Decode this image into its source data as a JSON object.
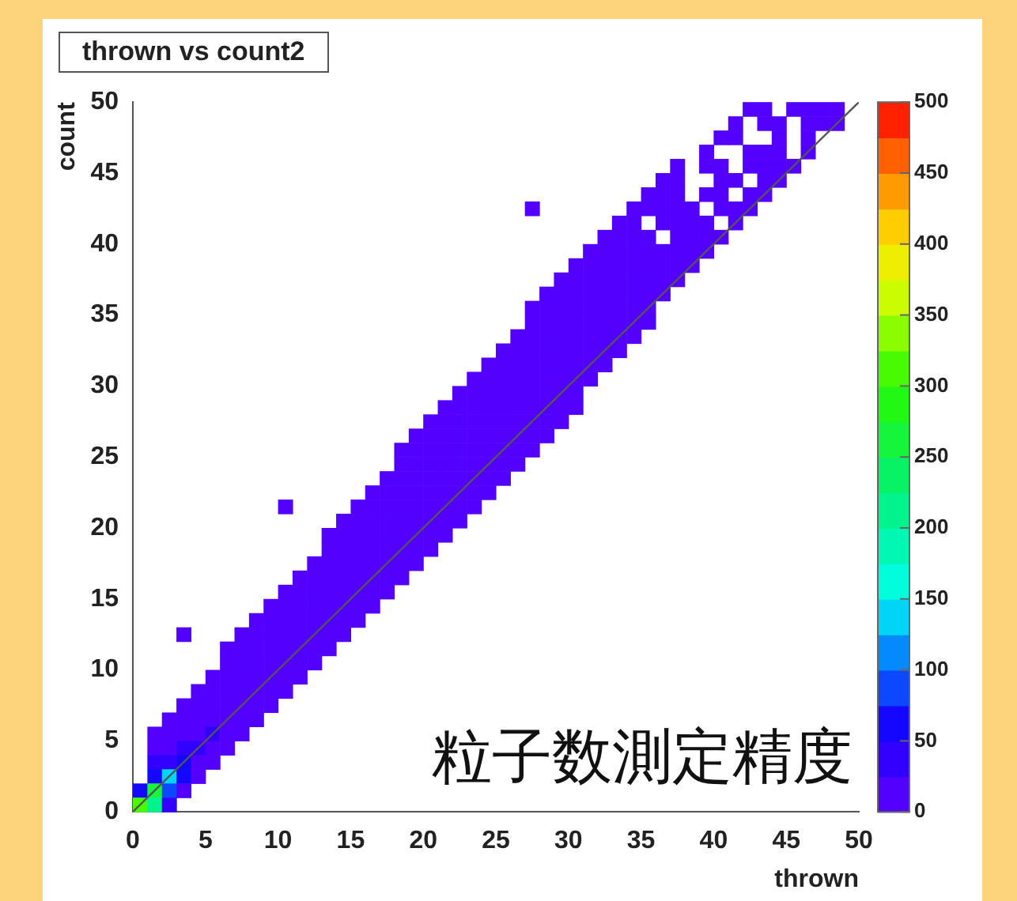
{
  "chart_data": {
    "type": "heatmap",
    "title": "thrown vs count2",
    "xlabel": "thrown",
    "ylabel": "count",
    "annotations": [
      "粒子数測定精度"
    ],
    "xlim": [
      0,
      50
    ],
    "ylim": [
      0,
      50
    ],
    "xticks": [
      0,
      5,
      10,
      15,
      20,
      25,
      30,
      35,
      40,
      45,
      50
    ],
    "yticks": [
      0,
      5,
      10,
      15,
      20,
      25,
      30,
      35,
      40,
      45,
      50
    ],
    "clim": [
      0,
      500
    ],
    "cticks": [
      0,
      50,
      100,
      150,
      200,
      250,
      300,
      350,
      400,
      450,
      500
    ],
    "series": [
      {
        "type": "line",
        "x": [
          0,
          50
        ],
        "values": [
          0,
          50
        ],
        "color": "#555555"
      }
    ],
    "cells": [
      [
        null,
        null,
        null,
        null,
        null,
        null,
        null,
        null,
        null,
        null,
        null,
        null,
        null,
        null,
        null,
        null,
        null,
        null,
        null,
        null,
        null,
        null,
        null,
        null,
        null,
        null,
        null,
        null,
        null,
        null,
        null,
        null,
        null,
        null,
        null,
        null,
        null,
        null,
        null,
        null,
        null,
        null,
        10,
        10,
        null,
        10,
        10,
        10,
        10,
        null
      ],
      [
        null,
        null,
        null,
        null,
        null,
        null,
        null,
        null,
        null,
        null,
        null,
        null,
        null,
        null,
        null,
        null,
        null,
        null,
        null,
        null,
        null,
        null,
        null,
        null,
        null,
        null,
        null,
        null,
        null,
        null,
        null,
        null,
        null,
        null,
        null,
        null,
        null,
        null,
        null,
        null,
        null,
        10,
        null,
        10,
        10,
        null,
        10,
        10,
        10,
        null
      ],
      [
        null,
        null,
        null,
        null,
        null,
        null,
        null,
        null,
        null,
        null,
        null,
        null,
        null,
        null,
        null,
        null,
        null,
        null,
        null,
        null,
        null,
        null,
        null,
        null,
        null,
        null,
        null,
        null,
        null,
        null,
        null,
        null,
        null,
        null,
        null,
        null,
        null,
        null,
        null,
        null,
        10,
        10,
        null,
        null,
        10,
        null,
        10,
        null,
        null,
        null
      ],
      [
        null,
        null,
        null,
        null,
        null,
        null,
        null,
        null,
        null,
        null,
        null,
        null,
        null,
        null,
        null,
        null,
        null,
        null,
        null,
        null,
        null,
        null,
        null,
        null,
        null,
        null,
        null,
        null,
        null,
        null,
        null,
        null,
        null,
        null,
        null,
        null,
        null,
        null,
        null,
        10,
        null,
        null,
        10,
        10,
        10,
        null,
        10,
        null,
        null,
        null
      ],
      [
        null,
        null,
        null,
        null,
        null,
        null,
        null,
        null,
        null,
        null,
        null,
        null,
        null,
        null,
        null,
        null,
        null,
        null,
        null,
        null,
        null,
        null,
        null,
        null,
        null,
        null,
        null,
        null,
        null,
        null,
        null,
        null,
        null,
        null,
        null,
        null,
        null,
        10,
        null,
        10,
        10,
        null,
        10,
        10,
        10,
        10,
        null,
        null,
        null,
        null
      ],
      [
        null,
        null,
        null,
        null,
        null,
        null,
        null,
        null,
        null,
        null,
        null,
        null,
        null,
        null,
        null,
        null,
        null,
        null,
        null,
        null,
        null,
        null,
        null,
        null,
        null,
        null,
        null,
        null,
        null,
        null,
        null,
        null,
        null,
        null,
        null,
        null,
        10,
        10,
        null,
        null,
        10,
        10,
        null,
        10,
        10,
        null,
        null,
        null,
        null,
        null
      ],
      [
        null,
        null,
        null,
        null,
        null,
        null,
        null,
        null,
        null,
        null,
        null,
        null,
        null,
        null,
        null,
        null,
        null,
        null,
        null,
        null,
        null,
        null,
        null,
        null,
        null,
        null,
        null,
        null,
        null,
        null,
        null,
        null,
        null,
        null,
        null,
        10,
        10,
        10,
        null,
        10,
        10,
        null,
        10,
        10,
        null,
        null,
        null,
        null,
        null,
        null
      ],
      [
        null,
        null,
        null,
        null,
        null,
        null,
        null,
        null,
        null,
        null,
        null,
        null,
        null,
        null,
        null,
        null,
        null,
        null,
        null,
        null,
        null,
        null,
        null,
        null,
        null,
        null,
        null,
        10,
        null,
        null,
        null,
        null,
        null,
        null,
        10,
        10,
        10,
        10,
        10,
        null,
        10,
        10,
        10,
        null,
        null,
        null,
        null,
        null,
        null,
        null
      ],
      [
        null,
        null,
        null,
        null,
        null,
        null,
        null,
        null,
        null,
        null,
        null,
        null,
        null,
        null,
        null,
        null,
        null,
        null,
        null,
        null,
        null,
        null,
        null,
        null,
        null,
        null,
        null,
        null,
        null,
        null,
        null,
        null,
        null,
        10,
        10,
        null,
        10,
        10,
        10,
        10,
        null,
        10,
        null,
        null,
        null,
        null,
        null,
        null,
        null,
        null
      ],
      [
        null,
        null,
        null,
        null,
        null,
        null,
        null,
        null,
        null,
        null,
        null,
        null,
        null,
        null,
        null,
        null,
        null,
        null,
        null,
        null,
        null,
        null,
        null,
        null,
        null,
        null,
        null,
        null,
        null,
        null,
        null,
        null,
        10,
        10,
        10,
        10,
        null,
        10,
        10,
        10,
        10,
        null,
        null,
        null,
        null,
        null,
        null,
        null,
        null,
        null
      ],
      [
        null,
        null,
        null,
        null,
        null,
        null,
        null,
        null,
        null,
        null,
        null,
        null,
        null,
        null,
        null,
        null,
        null,
        null,
        null,
        null,
        null,
        null,
        null,
        null,
        null,
        null,
        null,
        null,
        null,
        null,
        null,
        10,
        10,
        10,
        10,
        10,
        10,
        10,
        10,
        10,
        null,
        null,
        null,
        null,
        null,
        null,
        null,
        null,
        null,
        null
      ],
      [
        null,
        null,
        null,
        null,
        null,
        null,
        null,
        null,
        null,
        null,
        null,
        null,
        null,
        null,
        null,
        null,
        null,
        null,
        null,
        null,
        null,
        null,
        null,
        null,
        null,
        null,
        null,
        null,
        null,
        null,
        10,
        10,
        10,
        10,
        10,
        10,
        10,
        10,
        10,
        null,
        null,
        null,
        null,
        null,
        null,
        null,
        null,
        null,
        null,
        null
      ],
      [
        null,
        null,
        null,
        null,
        null,
        null,
        null,
        null,
        null,
        null,
        null,
        null,
        null,
        null,
        null,
        null,
        null,
        null,
        null,
        null,
        null,
        null,
        null,
        null,
        null,
        null,
        null,
        null,
        null,
        10,
        10,
        10,
        10,
        10,
        10,
        10,
        10,
        10,
        null,
        null,
        null,
        null,
        null,
        null,
        null,
        null,
        null,
        null,
        null,
        null
      ],
      [
        null,
        null,
        null,
        null,
        null,
        null,
        null,
        null,
        null,
        null,
        null,
        null,
        null,
        null,
        null,
        null,
        null,
        null,
        null,
        null,
        null,
        null,
        null,
        null,
        null,
        null,
        null,
        null,
        10,
        10,
        10,
        10,
        10,
        10,
        10,
        10,
        10,
        null,
        null,
        null,
        null,
        null,
        null,
        null,
        null,
        null,
        null,
        null,
        null,
        null
      ],
      [
        null,
        null,
        null,
        null,
        null,
        null,
        null,
        null,
        null,
        null,
        null,
        null,
        null,
        null,
        null,
        null,
        null,
        null,
        null,
        null,
        null,
        null,
        null,
        null,
        null,
        null,
        null,
        10,
        10,
        10,
        10,
        10,
        10,
        10,
        10,
        10,
        null,
        null,
        null,
        null,
        null,
        null,
        null,
        null,
        null,
        null,
        null,
        null,
        null,
        null
      ],
      [
        null,
        null,
        null,
        null,
        null,
        null,
        null,
        null,
        null,
        null,
        null,
        null,
        null,
        null,
        null,
        null,
        null,
        null,
        null,
        null,
        null,
        null,
        null,
        null,
        null,
        null,
        null,
        10,
        10,
        10,
        10,
        10,
        10,
        10,
        10,
        10,
        null,
        null,
        null,
        null,
        null,
        null,
        null,
        null,
        null,
        null,
        null,
        null,
        null,
        null
      ],
      [
        null,
        null,
        null,
        null,
        null,
        null,
        null,
        null,
        null,
        null,
        null,
        null,
        null,
        null,
        null,
        null,
        null,
        null,
        null,
        null,
        null,
        null,
        null,
        null,
        null,
        null,
        10,
        10,
        10,
        10,
        10,
        10,
        10,
        10,
        10,
        null,
        null,
        null,
        null,
        null,
        null,
        null,
        null,
        null,
        null,
        null,
        null,
        null,
        null,
        null
      ],
      [
        null,
        null,
        null,
        null,
        null,
        null,
        null,
        null,
        null,
        null,
        null,
        null,
        null,
        null,
        null,
        null,
        null,
        null,
        null,
        null,
        null,
        null,
        null,
        null,
        null,
        10,
        10,
        10,
        10,
        10,
        10,
        10,
        10,
        10,
        null,
        null,
        null,
        null,
        null,
        null,
        null,
        null,
        null,
        null,
        null,
        null,
        null,
        null,
        null,
        null
      ],
      [
        null,
        null,
        null,
        null,
        null,
        null,
        null,
        null,
        null,
        null,
        null,
        null,
        null,
        null,
        null,
        null,
        null,
        null,
        null,
        null,
        null,
        null,
        null,
        null,
        10,
        10,
        10,
        10,
        10,
        10,
        10,
        10,
        10,
        null,
        null,
        null,
        null,
        null,
        null,
        null,
        null,
        null,
        null,
        null,
        null,
        null,
        null,
        null,
        null,
        null
      ],
      [
        null,
        null,
        null,
        null,
        null,
        null,
        null,
        null,
        null,
        null,
        null,
        null,
        null,
        null,
        null,
        null,
        null,
        null,
        null,
        null,
        null,
        null,
        null,
        10,
        10,
        10,
        10,
        10,
        10,
        10,
        10,
        10,
        null,
        null,
        null,
        null,
        null,
        null,
        null,
        null,
        null,
        null,
        null,
        null,
        null,
        null,
        null,
        null,
        null,
        null
      ],
      [
        null,
        null,
        null,
        null,
        null,
        null,
        null,
        null,
        null,
        null,
        null,
        null,
        null,
        null,
        null,
        null,
        null,
        null,
        null,
        null,
        null,
        null,
        10,
        10,
        10,
        10,
        10,
        10,
        10,
        10,
        10,
        null,
        null,
        null,
        null,
        null,
        null,
        null,
        null,
        null,
        null,
        null,
        null,
        null,
        null,
        null,
        null,
        null,
        null,
        null
      ],
      [
        null,
        null,
        null,
        null,
        null,
        null,
        null,
        null,
        null,
        null,
        null,
        null,
        null,
        null,
        null,
        null,
        null,
        null,
        null,
        null,
        null,
        10,
        10,
        10,
        10,
        10,
        10,
        10,
        10,
        10,
        10,
        null,
        null,
        null,
        null,
        null,
        null,
        null,
        null,
        null,
        null,
        null,
        null,
        null,
        null,
        null,
        null,
        null,
        null,
        null
      ],
      [
        null,
        null,
        null,
        null,
        null,
        null,
        null,
        null,
        null,
        null,
        null,
        null,
        null,
        null,
        null,
        null,
        null,
        null,
        null,
        null,
        10,
        10,
        10,
        10,
        10,
        10,
        10,
        10,
        10,
        10,
        null,
        null,
        null,
        null,
        null,
        null,
        null,
        null,
        null,
        null,
        null,
        null,
        null,
        null,
        null,
        null,
        null,
        null,
        null,
        null
      ],
      [
        null,
        null,
        null,
        null,
        null,
        null,
        null,
        null,
        null,
        null,
        null,
        null,
        null,
        null,
        null,
        null,
        null,
        null,
        null,
        10,
        10,
        10,
        10,
        10,
        10,
        10,
        10,
        10,
        10,
        null,
        null,
        null,
        null,
        null,
        null,
        null,
        null,
        null,
        null,
        null,
        null,
        null,
        null,
        null,
        null,
        null,
        null,
        null,
        null,
        null
      ],
      [
        null,
        null,
        null,
        null,
        null,
        null,
        null,
        null,
        null,
        null,
        null,
        null,
        null,
        null,
        null,
        null,
        null,
        null,
        10,
        10,
        10,
        10,
        10,
        10,
        10,
        10,
        10,
        10,
        null,
        null,
        null,
        null,
        null,
        null,
        null,
        null,
        null,
        null,
        null,
        null,
        null,
        null,
        null,
        null,
        null,
        null,
        null,
        null,
        null,
        null
      ],
      [
        null,
        null,
        null,
        null,
        null,
        null,
        null,
        null,
        null,
        null,
        null,
        null,
        null,
        null,
        null,
        null,
        null,
        null,
        10,
        10,
        10,
        10,
        10,
        10,
        10,
        10,
        10,
        null,
        null,
        null,
        null,
        null,
        null,
        null,
        null,
        null,
        null,
        null,
        null,
        null,
        null,
        null,
        null,
        null,
        null,
        null,
        null,
        null,
        null,
        null
      ],
      [
        null,
        null,
        null,
        null,
        null,
        null,
        null,
        null,
        null,
        null,
        null,
        null,
        null,
        null,
        null,
        null,
        null,
        10,
        10,
        10,
        10,
        10,
        10,
        10,
        10,
        10,
        null,
        null,
        null,
        null,
        null,
        null,
        null,
        null,
        null,
        null,
        null,
        null,
        null,
        null,
        null,
        null,
        null,
        null,
        null,
        null,
        null,
        null,
        null,
        null
      ],
      [
        null,
        null,
        null,
        null,
        null,
        null,
        null,
        null,
        null,
        null,
        null,
        null,
        null,
        null,
        null,
        null,
        10,
        10,
        10,
        10,
        10,
        10,
        10,
        10,
        10,
        null,
        null,
        null,
        null,
        null,
        null,
        null,
        null,
        null,
        null,
        null,
        null,
        null,
        null,
        null,
        null,
        null,
        null,
        null,
        null,
        null,
        null,
        null,
        null,
        null
      ],
      [
        null,
        null,
        null,
        null,
        null,
        null,
        null,
        null,
        null,
        null,
        10,
        null,
        null,
        null,
        null,
        10,
        10,
        10,
        10,
        10,
        10,
        10,
        10,
        10,
        null,
        null,
        null,
        null,
        null,
        null,
        null,
        null,
        null,
        null,
        null,
        null,
        null,
        null,
        null,
        null,
        null,
        null,
        null,
        null,
        null,
        null,
        null,
        null,
        null,
        null
      ],
      [
        null,
        null,
        null,
        null,
        null,
        null,
        null,
        null,
        null,
        null,
        null,
        null,
        null,
        null,
        10,
        10,
        10,
        10,
        10,
        10,
        10,
        10,
        10,
        null,
        null,
        null,
        null,
        null,
        null,
        null,
        null,
        null,
        null,
        null,
        null,
        null,
        null,
        null,
        null,
        null,
        null,
        null,
        null,
        null,
        null,
        null,
        null,
        null,
        null,
        null
      ],
      [
        null,
        null,
        null,
        null,
        null,
        null,
        null,
        null,
        null,
        null,
        null,
        null,
        null,
        10,
        10,
        10,
        10,
        10,
        10,
        10,
        10,
        10,
        null,
        null,
        null,
        null,
        null,
        null,
        null,
        null,
        null,
        null,
        null,
        null,
        null,
        null,
        null,
        null,
        null,
        null,
        null,
        null,
        null,
        null,
        null,
        null,
        null,
        null,
        null,
        null
      ],
      [
        null,
        null,
        null,
        null,
        null,
        null,
        null,
        null,
        null,
        null,
        null,
        null,
        null,
        10,
        10,
        10,
        10,
        10,
        10,
        10,
        10,
        null,
        null,
        null,
        null,
        null,
        null,
        null,
        null,
        null,
        null,
        null,
        null,
        null,
        null,
        null,
        null,
        null,
        null,
        null,
        null,
        null,
        null,
        null,
        null,
        null,
        null,
        null,
        null,
        null
      ],
      [
        null,
        null,
        null,
        null,
        null,
        null,
        null,
        null,
        null,
        null,
        null,
        null,
        10,
        10,
        10,
        10,
        10,
        10,
        10,
        10,
        null,
        null,
        null,
        null,
        null,
        null,
        null,
        null,
        null,
        null,
        null,
        null,
        null,
        null,
        null,
        null,
        null,
        null,
        null,
        null,
        null,
        null,
        null,
        null,
        null,
        null,
        null,
        null,
        null,
        null
      ],
      [
        null,
        null,
        null,
        null,
        null,
        null,
        null,
        null,
        null,
        null,
        null,
        10,
        10,
        10,
        10,
        10,
        10,
        10,
        10,
        null,
        null,
        null,
        null,
        null,
        null,
        null,
        null,
        null,
        null,
        null,
        null,
        null,
        null,
        null,
        null,
        null,
        null,
        null,
        null,
        null,
        null,
        null,
        null,
        null,
        null,
        null,
        null,
        null,
        null,
        null
      ],
      [
        null,
        null,
        null,
        null,
        null,
        null,
        null,
        null,
        null,
        null,
        10,
        10,
        10,
        10,
        10,
        10,
        10,
        10,
        null,
        null,
        null,
        null,
        null,
        null,
        null,
        null,
        null,
        null,
        null,
        null,
        null,
        null,
        null,
        null,
        null,
        null,
        null,
        null,
        null,
        null,
        null,
        null,
        null,
        null,
        null,
        null,
        null,
        null,
        null,
        null
      ],
      [
        null,
        null,
        null,
        null,
        null,
        null,
        null,
        null,
        null,
        10,
        10,
        10,
        10,
        10,
        10,
        10,
        10,
        null,
        null,
        null,
        null,
        null,
        null,
        null,
        null,
        null,
        null,
        null,
        null,
        null,
        null,
        null,
        null,
        null,
        null,
        null,
        null,
        null,
        null,
        null,
        null,
        null,
        null,
        null,
        null,
        null,
        null,
        null,
        null,
        null
      ],
      [
        null,
        null,
        null,
        null,
        null,
        null,
        null,
        null,
        10,
        10,
        10,
        10,
        10,
        10,
        10,
        10,
        null,
        null,
        null,
        null,
        null,
        null,
        null,
        null,
        null,
        null,
        null,
        null,
        null,
        null,
        null,
        null,
        null,
        null,
        null,
        null,
        null,
        null,
        null,
        null,
        null,
        null,
        null,
        null,
        null,
        null,
        null,
        null,
        null,
        null
      ],
      [
        null,
        null,
        null,
        10,
        null,
        null,
        null,
        10,
        10,
        10,
        10,
        10,
        10,
        10,
        10,
        null,
        null,
        null,
        null,
        null,
        null,
        null,
        null,
        null,
        null,
        null,
        null,
        null,
        null,
        null,
        null,
        null,
        null,
        null,
        null,
        null,
        null,
        null,
        null,
        null,
        null,
        null,
        null,
        null,
        null,
        null,
        null,
        null,
        null,
        null
      ],
      [
        null,
        null,
        null,
        null,
        null,
        null,
        10,
        10,
        10,
        10,
        10,
        10,
        10,
        10,
        null,
        null,
        null,
        null,
        null,
        null,
        null,
        null,
        null,
        null,
        null,
        null,
        null,
        null,
        null,
        null,
        null,
        null,
        null,
        null,
        null,
        null,
        null,
        null,
        null,
        null,
        null,
        null,
        null,
        null,
        null,
        null,
        null,
        null,
        null,
        null
      ],
      [
        null,
        null,
        null,
        null,
        null,
        null,
        10,
        10,
        10,
        10,
        10,
        10,
        10,
        null,
        null,
        null,
        null,
        null,
        null,
        null,
        null,
        null,
        null,
        null,
        null,
        null,
        null,
        null,
        null,
        null,
        null,
        null,
        null,
        null,
        null,
        null,
        null,
        null,
        null,
        null,
        null,
        null,
        null,
        null,
        null,
        null,
        null,
        null,
        null,
        null
      ],
      [
        null,
        null,
        null,
        null,
        null,
        10,
        10,
        10,
        10,
        10,
        10,
        10,
        null,
        null,
        null,
        null,
        null,
        null,
        null,
        null,
        null,
        null,
        null,
        null,
        null,
        null,
        null,
        null,
        null,
        null,
        null,
        null,
        null,
        null,
        null,
        null,
        null,
        null,
        null,
        null,
        null,
        null,
        null,
        null,
        null,
        null,
        null,
        null,
        null,
        null
      ],
      [
        null,
        null,
        null,
        null,
        10,
        10,
        10,
        10,
        10,
        10,
        10,
        null,
        null,
        null,
        null,
        null,
        null,
        null,
        null,
        null,
        null,
        null,
        null,
        null,
        null,
        null,
        null,
        null,
        null,
        null,
        null,
        null,
        null,
        null,
        null,
        null,
        null,
        null,
        null,
        null,
        null,
        null,
        null,
        null,
        null,
        null,
        null,
        null,
        null,
        null
      ],
      [
        null,
        null,
        null,
        10,
        10,
        10,
        10,
        10,
        10,
        10,
        null,
        null,
        null,
        null,
        null,
        null,
        null,
        null,
        null,
        null,
        null,
        null,
        null,
        null,
        null,
        null,
        null,
        null,
        null,
        null,
        null,
        null,
        null,
        null,
        null,
        null,
        null,
        null,
        null,
        null,
        null,
        null,
        null,
        null,
        null,
        null,
        null,
        null,
        null,
        null
      ],
      [
        null,
        null,
        10,
        10,
        10,
        10,
        10,
        10,
        10,
        null,
        null,
        null,
        null,
        null,
        null,
        null,
        null,
        null,
        null,
        null,
        null,
        null,
        null,
        null,
        null,
        null,
        null,
        null,
        null,
        null,
        null,
        null,
        null,
        null,
        null,
        null,
        null,
        null,
        null,
        null,
        null,
        null,
        null,
        null,
        null,
        null,
        null,
        null,
        null,
        null
      ],
      [
        null,
        10,
        10,
        20,
        20,
        30,
        10,
        10,
        null,
        null,
        null,
        null,
        null,
        null,
        null,
        null,
        null,
        null,
        null,
        null,
        null,
        null,
        null,
        null,
        null,
        null,
        null,
        null,
        null,
        null,
        null,
        null,
        null,
        null,
        null,
        null,
        null,
        null,
        null,
        null,
        null,
        null,
        null,
        null,
        null,
        null,
        null,
        null,
        null,
        null
      ],
      [
        null,
        20,
        20,
        30,
        40,
        10,
        10,
        null,
        null,
        null,
        null,
        null,
        null,
        null,
        null,
        null,
        null,
        null,
        null,
        null,
        null,
        null,
        null,
        null,
        null,
        null,
        null,
        null,
        null,
        null,
        null,
        null,
        null,
        null,
        null,
        null,
        null,
        null,
        null,
        null,
        null,
        null,
        null,
        null,
        null,
        null,
        null,
        null,
        null,
        null
      ],
      [
        null,
        30,
        40,
        60,
        20,
        10,
        null,
        null,
        null,
        null,
        null,
        null,
        null,
        null,
        null,
        null,
        null,
        null,
        null,
        null,
        null,
        null,
        null,
        null,
        null,
        null,
        null,
        null,
        null,
        null,
        null,
        null,
        null,
        null,
        null,
        null,
        null,
        null,
        null,
        null,
        null,
        null,
        null,
        null,
        null,
        null,
        null,
        null,
        null,
        null
      ],
      [
        null,
        60,
        130,
        50,
        10,
        null,
        null,
        null,
        null,
        null,
        null,
        null,
        null,
        null,
        null,
        null,
        null,
        null,
        null,
        null,
        null,
        null,
        null,
        null,
        null,
        null,
        null,
        null,
        null,
        null,
        null,
        null,
        null,
        null,
        null,
        null,
        null,
        null,
        null,
        null,
        null,
        null,
        null,
        null,
        null,
        null,
        null,
        null,
        null,
        null
      ],
      [
        60,
        250,
        80,
        20,
        null,
        null,
        null,
        null,
        null,
        null,
        null,
        null,
        null,
        null,
        null,
        null,
        null,
        null,
        null,
        null,
        null,
        null,
        null,
        null,
        null,
        null,
        null,
        null,
        null,
        null,
        null,
        null,
        null,
        null,
        null,
        null,
        null,
        null,
        null,
        null,
        null,
        null,
        null,
        null,
        null,
        null,
        null,
        null,
        null,
        null
      ],
      [
        300,
        200,
        40,
        null,
        null,
        null,
        null,
        null,
        null,
        null,
        null,
        null,
        null,
        null,
        null,
        null,
        null,
        null,
        null,
        null,
        null,
        null,
        null,
        null,
        null,
        null,
        null,
        null,
        null,
        null,
        null,
        null,
        null,
        null,
        null,
        null,
        null,
        null,
        null,
        null,
        null,
        null,
        null,
        null,
        null,
        null,
        null,
        null,
        null,
        null
      ]
    ]
  }
}
